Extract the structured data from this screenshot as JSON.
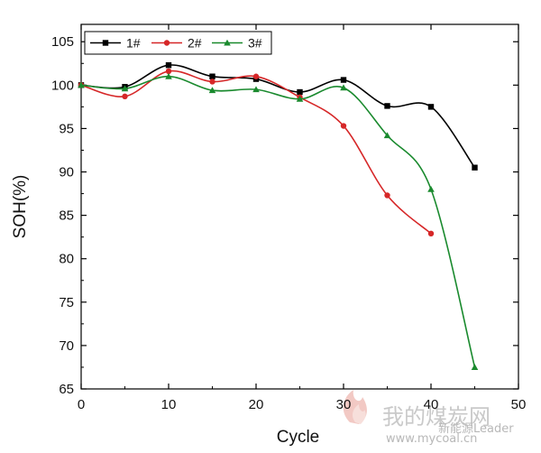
{
  "chart_data": {
    "type": "line",
    "title": "",
    "xlabel": "Cycle",
    "ylabel": "SOH(%)",
    "xlim": [
      0,
      50
    ],
    "ylim": [
      65,
      107
    ],
    "xticks": [
      0,
      10,
      20,
      30,
      40,
      50
    ],
    "yticks": [
      65,
      70,
      75,
      80,
      85,
      90,
      95,
      100,
      105
    ],
    "grid": false,
    "legend_position": "top-left",
    "series": [
      {
        "name": "1#",
        "color": "#000000",
        "marker": "square",
        "x": [
          0,
          5,
          10,
          15,
          20,
          25,
          30,
          35,
          40,
          45
        ],
        "y": [
          100.0,
          99.8,
          102.3,
          101.0,
          100.7,
          99.2,
          100.6,
          97.6,
          97.5,
          90.5
        ]
      },
      {
        "name": "2#",
        "color": "#d62728",
        "marker": "circle",
        "x": [
          0,
          5,
          10,
          15,
          20,
          25,
          30,
          35,
          40
        ],
        "y": [
          100.0,
          98.7,
          101.6,
          100.4,
          101.0,
          98.6,
          95.3,
          87.3,
          82.9
        ]
      },
      {
        "name": "3#",
        "color": "#1a8a2e",
        "marker": "triangle",
        "x": [
          0,
          5,
          10,
          15,
          20,
          25,
          30,
          35,
          40,
          45
        ],
        "y": [
          100.0,
          99.6,
          101.0,
          99.4,
          99.5,
          98.4,
          99.7,
          94.2,
          88.0,
          67.5
        ]
      }
    ]
  },
  "watermark": {
    "main": "我的煤炭网",
    "site": "www.mycoal.cn",
    "handle": "新能源Leader"
  }
}
